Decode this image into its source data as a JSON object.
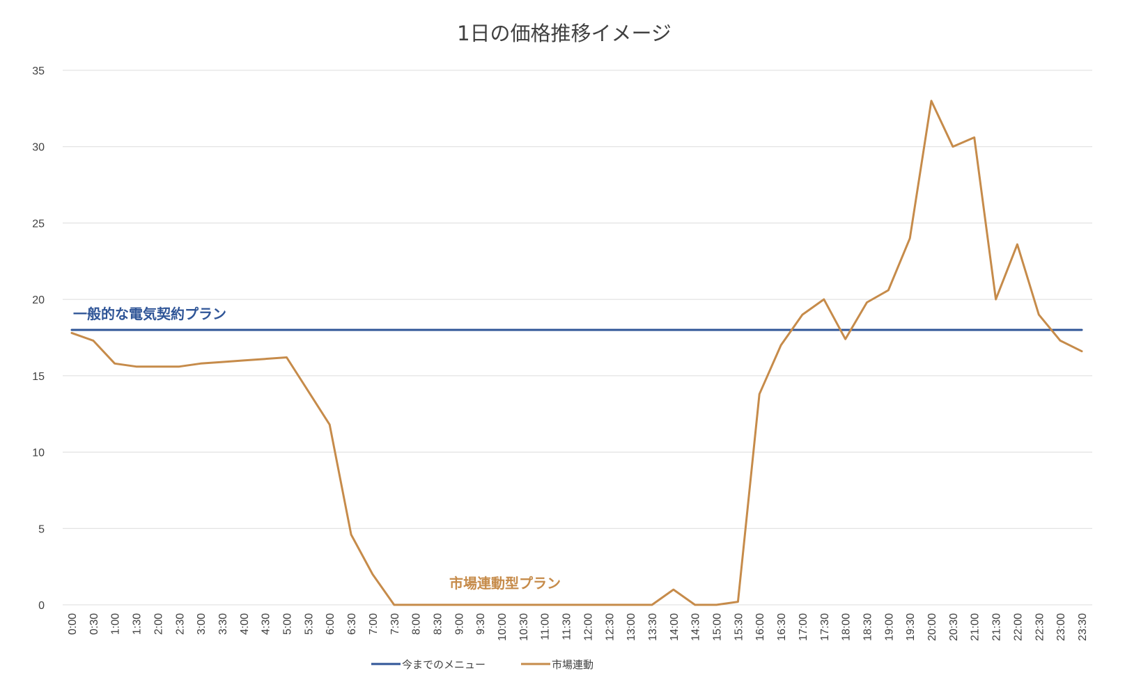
{
  "chart_data": {
    "type": "line",
    "title": "1日の価格推移イメージ",
    "xlabel": "",
    "ylabel": "",
    "ylim": [
      0,
      35
    ],
    "yticks": [
      0,
      5,
      10,
      15,
      20,
      25,
      30,
      35
    ],
    "grid": true,
    "legend_position": "bottom",
    "categories": [
      "0:00",
      "0:30",
      "1:00",
      "1:30",
      "2:00",
      "2:30",
      "3:00",
      "3:30",
      "4:00",
      "4:30",
      "5:00",
      "5:30",
      "6:00",
      "6:30",
      "7:00",
      "7:30",
      "8:00",
      "8:30",
      "9:00",
      "9:30",
      "10:00",
      "10:30",
      "11:00",
      "11:30",
      "12:00",
      "12:30",
      "13:00",
      "13:30",
      "14:00",
      "14:30",
      "15:00",
      "15:30",
      "16:00",
      "16:30",
      "17:00",
      "17:30",
      "18:00",
      "18:30",
      "19:00",
      "19:30",
      "20:00",
      "20:30",
      "21:00",
      "21:30",
      "22:00",
      "22:30",
      "23:00",
      "23:30"
    ],
    "series": [
      {
        "name": "今までのメニュー",
        "color": "#2f5597",
        "values": [
          18,
          18,
          18,
          18,
          18,
          18,
          18,
          18,
          18,
          18,
          18,
          18,
          18,
          18,
          18,
          18,
          18,
          18,
          18,
          18,
          18,
          18,
          18,
          18,
          18,
          18,
          18,
          18,
          18,
          18,
          18,
          18,
          18,
          18,
          18,
          18,
          18,
          18,
          18,
          18,
          18,
          18,
          18,
          18,
          18,
          18,
          18,
          18
        ]
      },
      {
        "name": "市場連動",
        "color": "#c68b4a",
        "values": [
          17.8,
          17.3,
          15.8,
          15.6,
          15.6,
          15.6,
          15.8,
          15.9,
          16.0,
          16.1,
          16.2,
          14.0,
          11.8,
          4.6,
          2.0,
          0,
          0,
          0,
          0,
          0,
          0,
          0,
          0,
          0,
          0,
          0,
          0,
          0,
          1.0,
          0,
          0,
          0.2,
          13.8,
          17.0,
          19.0,
          20.0,
          17.4,
          19.8,
          20.6,
          24.0,
          33.0,
          30.0,
          30.6,
          20.0,
          23.6,
          19.0,
          17.3,
          16.6
        ]
      }
    ],
    "annotations": [
      {
        "text": "一般的な電気契約プラン",
        "color": "#2f5597"
      },
      {
        "text": "市場連動型プラン",
        "color": "#c68b4a"
      }
    ]
  }
}
